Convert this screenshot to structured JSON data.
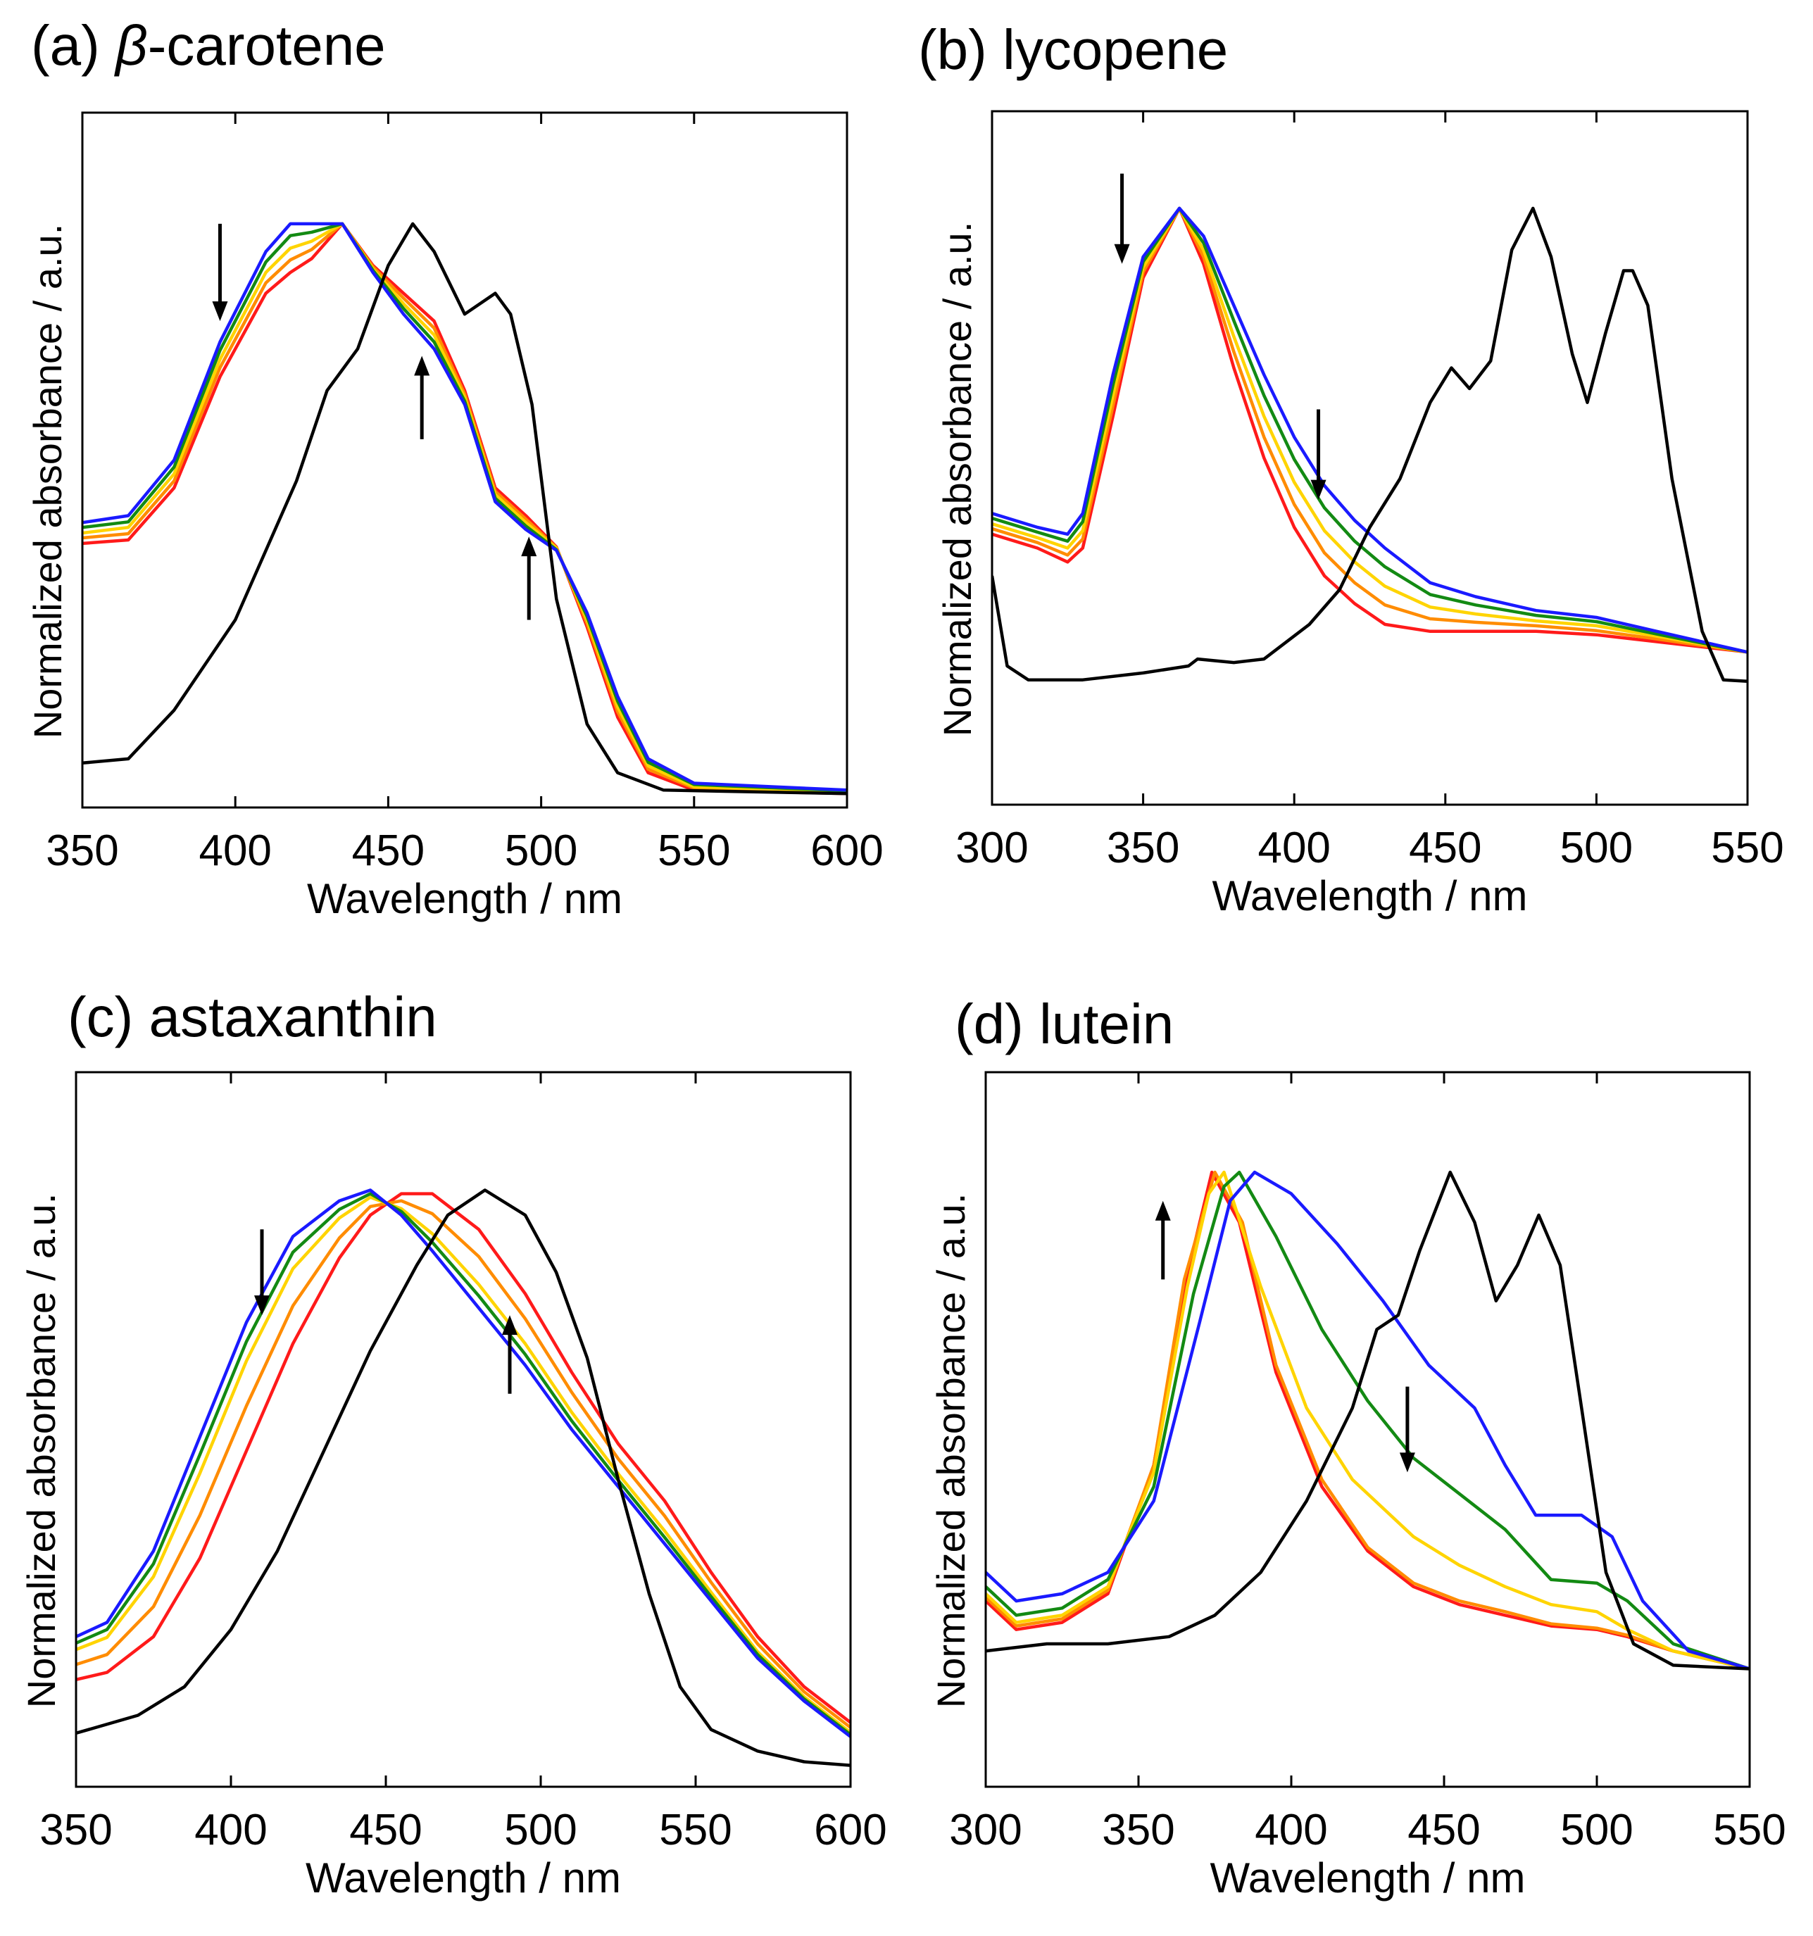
{
  "colors": {
    "red": "#ff1a1a",
    "orange": "#ff8c00",
    "yellow": "#ffd400",
    "green": "#138a13",
    "blue": "#1a1aff",
    "black": "#000000"
  },
  "chart_data": [
    {
      "type": "line",
      "id": "a",
      "title_prefix": "(a) ",
      "title_italic": "β",
      "title_rest": "-carotene",
      "xlabel": "Wavelength / nm",
      "ylabel": "Normalized absorbance / a.u.",
      "xlim": [
        350,
        600
      ],
      "ylim": [
        0,
        1
      ],
      "xticks": [
        "350",
        "400",
        "450",
        "500",
        "550",
        "600"
      ],
      "x": [
        350,
        365,
        380,
        395,
        410,
        418,
        425,
        435,
        445,
        455,
        465,
        475,
        485,
        495,
        505,
        515,
        525,
        535,
        550,
        600
      ],
      "series": [
        {
          "name": "red",
          "values": [
            0.38,
            0.385,
            0.46,
            0.62,
            0.74,
            0.77,
            0.79,
            0.84,
            0.78,
            0.74,
            0.7,
            0.6,
            0.46,
            0.42,
            0.375,
            0.26,
            0.13,
            0.05,
            0.025,
            0.02
          ]
        },
        {
          "name": "orange",
          "values": [
            0.388,
            0.394,
            0.47,
            0.633,
            0.755,
            0.788,
            0.803,
            0.84,
            0.778,
            0.733,
            0.69,
            0.595,
            0.455,
            0.415,
            0.374,
            0.265,
            0.138,
            0.055,
            0.028,
            0.021
          ]
        },
        {
          "name": "yellow",
          "values": [
            0.395,
            0.403,
            0.48,
            0.645,
            0.77,
            0.805,
            0.815,
            0.84,
            0.775,
            0.725,
            0.68,
            0.59,
            0.45,
            0.41,
            0.373,
            0.27,
            0.145,
            0.06,
            0.03,
            0.023
          ]
        },
        {
          "name": "green",
          "values": [
            0.403,
            0.411,
            0.49,
            0.658,
            0.785,
            0.823,
            0.828,
            0.84,
            0.773,
            0.718,
            0.67,
            0.585,
            0.445,
            0.405,
            0.371,
            0.275,
            0.153,
            0.065,
            0.033,
            0.024
          ]
        },
        {
          "name": "blue",
          "values": [
            0.41,
            0.42,
            0.5,
            0.67,
            0.8,
            0.84,
            0.84,
            0.84,
            0.77,
            0.71,
            0.66,
            0.58,
            0.44,
            0.4,
            0.37,
            0.28,
            0.16,
            0.07,
            0.035,
            0.025
          ]
        },
        {
          "name": "black",
          "x": [
            350,
            365,
            380,
            400,
            420,
            430,
            440,
            450,
            458,
            465,
            475,
            485,
            490,
            497,
            505,
            515,
            525,
            540,
            600
          ],
          "values": [
            0.064,
            0.07,
            0.14,
            0.27,
            0.47,
            0.6,
            0.66,
            0.78,
            0.84,
            0.8,
            0.71,
            0.74,
            0.71,
            0.58,
            0.3,
            0.12,
            0.05,
            0.025,
            0.02
          ]
        }
      ],
      "arrows": [
        {
          "x": 395,
          "from": 0.84,
          "to": 0.7
        },
        {
          "x": 461,
          "from": 0.53,
          "to": 0.65
        },
        {
          "x": 496,
          "from": 0.27,
          "to": 0.39
        }
      ]
    },
    {
      "type": "line",
      "id": "b",
      "title_prefix": "(b) lycopene",
      "title_italic": "",
      "title_rest": "",
      "xlabel": "Wavelength / nm",
      "ylabel": "Normalized absorbance / a.u.",
      "xlim": [
        300,
        550
      ],
      "ylim": [
        0,
        1
      ],
      "xticks": [
        "300",
        "350",
        "400",
        "450",
        "500",
        "550"
      ],
      "x": [
        300,
        315,
        325,
        330,
        340,
        350,
        362,
        370,
        380,
        390,
        400,
        410,
        420,
        430,
        445,
        460,
        480,
        500,
        520,
        550
      ],
      "series": [
        {
          "name": "red",
          "values": [
            0.39,
            0.37,
            0.35,
            0.37,
            0.56,
            0.76,
            0.86,
            0.78,
            0.63,
            0.5,
            0.4,
            0.33,
            0.29,
            0.26,
            0.25,
            0.25,
            0.25,
            0.245,
            0.235,
            0.22
          ]
        },
        {
          "name": "orange",
          "values": [
            0.398,
            0.378,
            0.36,
            0.383,
            0.575,
            0.768,
            0.86,
            0.79,
            0.653,
            0.53,
            0.433,
            0.363,
            0.32,
            0.288,
            0.268,
            0.263,
            0.258,
            0.251,
            0.239,
            0.22
          ]
        },
        {
          "name": "yellow",
          "values": [
            0.405,
            0.385,
            0.37,
            0.395,
            0.59,
            0.775,
            0.86,
            0.8,
            0.675,
            0.56,
            0.465,
            0.395,
            0.35,
            0.315,
            0.285,
            0.275,
            0.265,
            0.258,
            0.243,
            0.22
          ]
        },
        {
          "name": "green",
          "values": [
            0.413,
            0.393,
            0.38,
            0.408,
            0.605,
            0.783,
            0.86,
            0.81,
            0.698,
            0.59,
            0.498,
            0.428,
            0.38,
            0.343,
            0.303,
            0.288,
            0.273,
            0.264,
            0.246,
            0.22
          ]
        },
        {
          "name": "blue",
          "values": [
            0.42,
            0.4,
            0.39,
            0.42,
            0.62,
            0.79,
            0.86,
            0.82,
            0.72,
            0.62,
            0.53,
            0.46,
            0.41,
            0.37,
            0.32,
            0.3,
            0.28,
            0.27,
            0.25,
            0.22
          ]
        },
        {
          "name": "black",
          "x": [
            300,
            305,
            312,
            330,
            350,
            365,
            368,
            380,
            390,
            405,
            415,
            425,
            435,
            445,
            452,
            458,
            465,
            472,
            479,
            485,
            492,
            497,
            503,
            509,
            512,
            517,
            525,
            535,
            542,
            550
          ],
          "values": [
            0.33,
            0.2,
            0.18,
            0.18,
            0.19,
            0.2,
            0.21,
            0.205,
            0.21,
            0.26,
            0.31,
            0.4,
            0.47,
            0.58,
            0.63,
            0.6,
            0.64,
            0.8,
            0.86,
            0.79,
            0.65,
            0.58,
            0.68,
            0.77,
            0.77,
            0.72,
            0.47,
            0.25,
            0.18,
            0.178
          ]
        }
      ],
      "arrows": [
        {
          "x": 343,
          "from": 0.91,
          "to": 0.78
        },
        {
          "x": 408,
          "from": 0.57,
          "to": 0.44
        }
      ]
    },
    {
      "type": "line",
      "id": "c",
      "title_prefix": "(c) astaxanthin",
      "title_italic": "",
      "title_rest": "",
      "xlabel": "Wavelength / nm",
      "ylabel": "Normalized absorbance / a.u.",
      "xlim": [
        350,
        600
      ],
      "ylim": [
        0,
        1
      ],
      "xticks": [
        "350",
        "400",
        "450",
        "500",
        "550",
        "600"
      ],
      "x": [
        350,
        360,
        375,
        390,
        405,
        420,
        435,
        445,
        455,
        465,
        480,
        495,
        510,
        525,
        540,
        555,
        570,
        585,
        600
      ],
      "series": [
        {
          "name": "red",
          "values": [
            0.15,
            0.16,
            0.21,
            0.32,
            0.47,
            0.62,
            0.74,
            0.8,
            0.83,
            0.83,
            0.78,
            0.69,
            0.58,
            0.48,
            0.4,
            0.3,
            0.21,
            0.14,
            0.09
          ]
        },
        {
          "name": "orange",
          "values": [
            0.171,
            0.185,
            0.252,
            0.38,
            0.533,
            0.673,
            0.768,
            0.812,
            0.82,
            0.802,
            0.742,
            0.655,
            0.552,
            0.459,
            0.379,
            0.286,
            0.2,
            0.133,
            0.083
          ]
        },
        {
          "name": "yellow",
          "values": [
            0.192,
            0.209,
            0.294,
            0.439,
            0.596,
            0.725,
            0.796,
            0.825,
            0.809,
            0.774,
            0.703,
            0.62,
            0.524,
            0.438,
            0.358,
            0.272,
            0.189,
            0.126,
            0.076
          ]
        },
        {
          "name": "green",
          "values": [
            0.201,
            0.22,
            0.312,
            0.465,
            0.623,
            0.748,
            0.808,
            0.83,
            0.805,
            0.762,
            0.687,
            0.605,
            0.512,
            0.429,
            0.349,
            0.266,
            0.185,
            0.123,
            0.073
          ]
        },
        {
          "name": "blue",
          "values": [
            0.21,
            0.23,
            0.33,
            0.49,
            0.65,
            0.77,
            0.82,
            0.835,
            0.8,
            0.75,
            0.67,
            0.59,
            0.5,
            0.42,
            0.34,
            0.26,
            0.18,
            0.12,
            0.07
          ]
        },
        {
          "name": "black",
          "x": [
            350,
            370,
            385,
            400,
            415,
            430,
            445,
            460,
            470,
            482,
            495,
            505,
            515,
            525,
            535,
            545,
            555,
            570,
            585,
            600
          ],
          "values": [
            0.075,
            0.1,
            0.14,
            0.22,
            0.33,
            0.47,
            0.61,
            0.73,
            0.8,
            0.835,
            0.8,
            0.72,
            0.6,
            0.43,
            0.27,
            0.14,
            0.08,
            0.05,
            0.035,
            0.03
          ]
        }
      ],
      "arrows": [
        {
          "x": 410,
          "from": 0.78,
          "to": 0.66
        },
        {
          "x": 490,
          "from": 0.55,
          "to": 0.66
        }
      ]
    },
    {
      "type": "line",
      "id": "d",
      "title_prefix": "(d) lutein",
      "title_italic": "",
      "title_rest": "",
      "xlabel": "Wavelength / nm",
      "ylabel": "Normalized absorbance / a.u.",
      "xlim": [
        300,
        550
      ],
      "ylim": [
        0,
        1
      ],
      "xticks": [
        "300",
        "350",
        "400",
        "450",
        "500",
        "550"
      ],
      "series": [
        {
          "name": "red",
          "x": [
            300,
            310,
            325,
            340,
            355,
            365,
            374,
            383,
            395,
            410,
            425,
            440,
            455,
            470,
            485,
            500,
            510,
            525,
            550
          ],
          "values": [
            0.26,
            0.22,
            0.23,
            0.27,
            0.45,
            0.7,
            0.86,
            0.79,
            0.58,
            0.42,
            0.33,
            0.28,
            0.255,
            0.24,
            0.225,
            0.22,
            0.21,
            0.19,
            0.165
          ]
        },
        {
          "name": "orange",
          "x": [
            300,
            310,
            325,
            340,
            355,
            365,
            375,
            384,
            395,
            410,
            425,
            440,
            455,
            470,
            485,
            500,
            510,
            525,
            550
          ],
          "values": [
            0.265,
            0.225,
            0.235,
            0.275,
            0.45,
            0.71,
            0.86,
            0.79,
            0.59,
            0.43,
            0.335,
            0.285,
            0.26,
            0.245,
            0.228,
            0.222,
            0.212,
            0.19,
            0.165
          ]
        },
        {
          "name": "yellow",
          "x": [
            300,
            310,
            325,
            340,
            355,
            366,
            373,
            378,
            390,
            405,
            420,
            440,
            455,
            470,
            485,
            500,
            510,
            525,
            550
          ],
          "values": [
            0.27,
            0.23,
            0.24,
            0.28,
            0.44,
            0.7,
            0.83,
            0.86,
            0.7,
            0.53,
            0.43,
            0.35,
            0.31,
            0.28,
            0.255,
            0.245,
            0.22,
            0.19,
            0.165
          ]
        },
        {
          "name": "green",
          "x": [
            300,
            310,
            325,
            340,
            355,
            368,
            378,
            383,
            395,
            410,
            425,
            440,
            455,
            470,
            485,
            500,
            510,
            525,
            550
          ],
          "values": [
            0.28,
            0.24,
            0.25,
            0.29,
            0.42,
            0.69,
            0.84,
            0.86,
            0.77,
            0.64,
            0.54,
            0.46,
            0.41,
            0.36,
            0.29,
            0.285,
            0.26,
            0.2,
            0.165
          ]
        },
        {
          "name": "blue",
          "x": [
            300,
            310,
            325,
            340,
            355,
            370,
            380,
            388,
            400,
            415,
            430,
            445,
            460,
            470,
            480,
            495,
            505,
            515,
            530,
            550
          ],
          "values": [
            0.3,
            0.26,
            0.27,
            0.3,
            0.4,
            0.65,
            0.82,
            0.86,
            0.83,
            0.76,
            0.68,
            0.59,
            0.53,
            0.45,
            0.38,
            0.38,
            0.35,
            0.26,
            0.19,
            0.165
          ]
        },
        {
          "name": "black",
          "x": [
            300,
            320,
            340,
            360,
            375,
            390,
            405,
            420,
            428,
            435,
            442,
            452,
            460,
            467,
            474,
            481,
            488,
            495,
            503,
            512,
            525,
            550
          ],
          "values": [
            0.19,
            0.2,
            0.2,
            0.21,
            0.24,
            0.3,
            0.4,
            0.53,
            0.64,
            0.66,
            0.75,
            0.86,
            0.79,
            0.68,
            0.73,
            0.8,
            0.73,
            0.53,
            0.3,
            0.2,
            0.17,
            0.165
          ]
        }
      ],
      "arrows": [
        {
          "x": 358,
          "from": 0.71,
          "to": 0.82
        },
        {
          "x": 438,
          "from": 0.56,
          "to": 0.44
        }
      ]
    }
  ]
}
